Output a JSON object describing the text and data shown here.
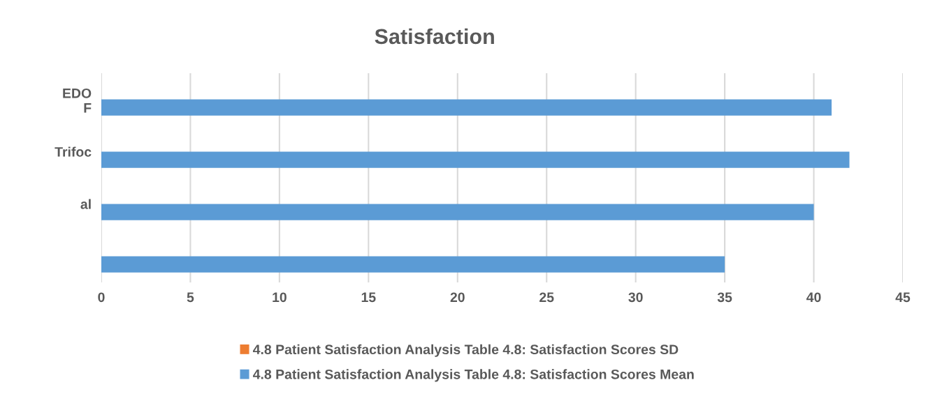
{
  "chart_data": {
    "type": "bar",
    "orientation": "horizontal",
    "title": "Satisfaction",
    "categories": [
      "EDO\nF",
      "Trifoc",
      "al",
      null
    ],
    "series": [
      {
        "name": "4.8 Patient Satisfaction Analysis Table 4.8: Satisfaction Scores SD",
        "color": "#ed7d31",
        "values": [
          null,
          null,
          null,
          null
        ]
      },
      {
        "name": "4.8 Patient Satisfaction Analysis Table 4.8: Satisfaction Scores Mean",
        "color": "#5b9bd5",
        "values": [
          41,
          42,
          40,
          35
        ]
      }
    ],
    "xlim": [
      0,
      45
    ],
    "xticks": [
      0,
      5,
      10,
      15,
      20,
      25,
      30,
      35,
      40,
      45
    ],
    "grid": "x",
    "legend": "bottom"
  }
}
